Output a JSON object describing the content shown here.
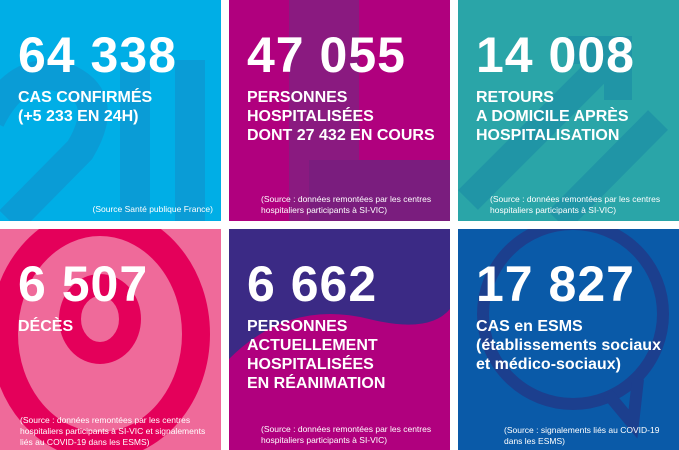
{
  "tiles": [
    {
      "number": "64 338",
      "label": [
        "CAS CONFIRMÉS",
        "(+5 233 EN 24H)"
      ],
      "source": [
        "(Source Santé publique France)"
      ],
      "color": "#00aee6"
    },
    {
      "number": "47 055",
      "label": [
        "PERSONNES",
        "HOSPITALISÉES",
        "DONT 27 432 EN COURS"
      ],
      "source": [
        "(Source : données remontées par les centres",
        "hospitaliers participants à SI-VIC)"
      ],
      "color": "#b0007e"
    },
    {
      "number": "14 008",
      "label": [
        "RETOURS",
        "A DOMICILE APRÈS",
        "HOSPITALISATION"
      ],
      "source": [
        "(Source : données remontées par les centres",
        "hospitaliers participants à SI-VIC)"
      ],
      "color": "#2aa5a8"
    },
    {
      "number": "6 507",
      "label": [
        "DÉCÈS"
      ],
      "source": [
        "(Source : données remontées par les centres",
        "hospitaliers participants à SI-VIC et signalements",
        "liés au COVID-19 dans les ESMS)"
      ],
      "color": "#ef6a9a"
    },
    {
      "number": "6 662",
      "label": [
        "PERSONNES",
        "ACTUELLEMENT",
        "HOSPITALISÉES",
        "EN RÉANIMATION"
      ],
      "source": [
        "(Source : données remontées par les centres",
        "hospitaliers participants à SI-VIC)"
      ],
      "color": "#b0007e"
    },
    {
      "number": "17 827",
      "label": [
        "CAS en ESMS",
        "(établissements sociaux",
        "et médico-sociaux)"
      ],
      "source": [
        "(Source : signalements liés au COVID-19",
        "dans les ESMS)"
      ],
      "color": "#0a5aa8"
    }
  ]
}
